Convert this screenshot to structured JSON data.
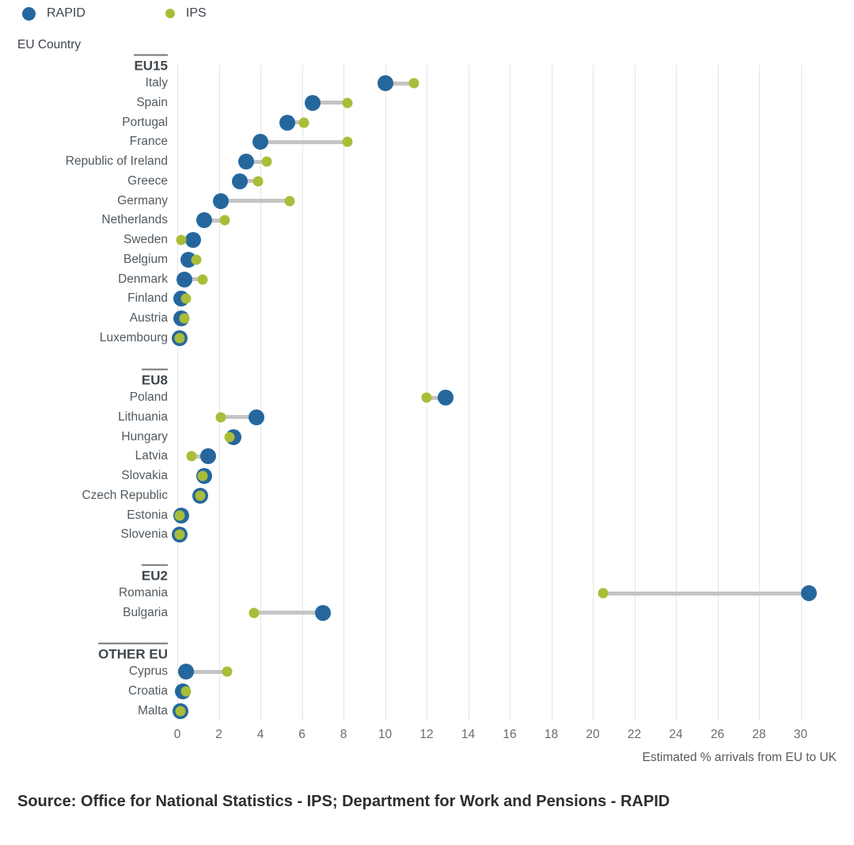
{
  "legend": {
    "items": [
      {
        "label": "RAPID",
        "series": "rapid"
      },
      {
        "label": "IPS",
        "series": "ips"
      }
    ]
  },
  "colors": {
    "rapid": "#25679d",
    "ips": "#a9bd38",
    "connector": "#c4c4c4",
    "gridline": "#e4e4e4"
  },
  "axes": {
    "y_title": "EU Country",
    "x_title": "Estimated % arrivals from EU to UK"
  },
  "source": "Source: Office for National Statistics - IPS; Department for Work and Pensions - RAPID",
  "chart_data": {
    "type": "scatter",
    "variant": "dumbbell-dot-plot",
    "xlabel": "Estimated % arrivals from EU to UK",
    "ylabel": "EU Country",
    "xlim": [
      0,
      30
    ],
    "x_ticks": [
      0,
      2,
      4,
      6,
      8,
      10,
      12,
      14,
      16,
      18,
      20,
      22,
      24,
      26,
      28,
      30
    ],
    "grid": "vertical",
    "legend_position": "top-left",
    "series_names": [
      "RAPID",
      "IPS"
    ],
    "groups": [
      {
        "label": "EU15",
        "countries": [
          {
            "name": "Italy",
            "rapid": 10.0,
            "ips": 11.4
          },
          {
            "name": "Spain",
            "rapid": 6.5,
            "ips": 8.2
          },
          {
            "name": "Portugal",
            "rapid": 5.3,
            "ips": 6.1
          },
          {
            "name": "France",
            "rapid": 4.0,
            "ips": 8.2
          },
          {
            "name": "Republic of Ireland",
            "rapid": 3.3,
            "ips": 4.3
          },
          {
            "name": "Greece",
            "rapid": 3.0,
            "ips": 3.9
          },
          {
            "name": "Germany",
            "rapid": 2.1,
            "ips": 5.4
          },
          {
            "name": "Netherlands",
            "rapid": 1.3,
            "ips": 2.3
          },
          {
            "name": "Sweden",
            "rapid": 0.75,
            "ips": 0.2
          },
          {
            "name": "Belgium",
            "rapid": 0.55,
            "ips": 0.9
          },
          {
            "name": "Denmark",
            "rapid": 0.35,
            "ips": 1.2
          },
          {
            "name": "Finland",
            "rapid": 0.2,
            "ips": 0.4
          },
          {
            "name": "Austria",
            "rapid": 0.2,
            "ips": 0.35
          },
          {
            "name": "Luxembourg",
            "rapid": 0.1,
            "ips": 0.1
          }
        ]
      },
      {
        "label": "EU8",
        "countries": [
          {
            "name": "Poland",
            "rapid": 12.9,
            "ips": 12.0
          },
          {
            "name": "Lithuania",
            "rapid": 3.8,
            "ips": 2.1
          },
          {
            "name": "Hungary",
            "rapid": 2.7,
            "ips": 2.5
          },
          {
            "name": "Latvia",
            "rapid": 1.5,
            "ips": 0.7
          },
          {
            "name": "Slovakia",
            "rapid": 1.3,
            "ips": 1.2
          },
          {
            "name": "Czech Republic",
            "rapid": 1.1,
            "ips": 1.1
          },
          {
            "name": "Estonia",
            "rapid": 0.2,
            "ips": 0.1
          },
          {
            "name": "Slovenia",
            "rapid": 0.1,
            "ips": 0.1
          }
        ]
      },
      {
        "label": "EU2",
        "countries": [
          {
            "name": "Romania",
            "rapid": 30.4,
            "ips": 20.5
          },
          {
            "name": "Bulgaria",
            "rapid": 7.0,
            "ips": 3.7
          }
        ]
      },
      {
        "label": "OTHER EU",
        "countries": [
          {
            "name": "Cyprus",
            "rapid": 0.4,
            "ips": 2.4
          },
          {
            "name": "Croatia",
            "rapid": 0.25,
            "ips": 0.4
          },
          {
            "name": "Malta",
            "rapid": 0.15,
            "ips": 0.15
          }
        ]
      }
    ]
  }
}
